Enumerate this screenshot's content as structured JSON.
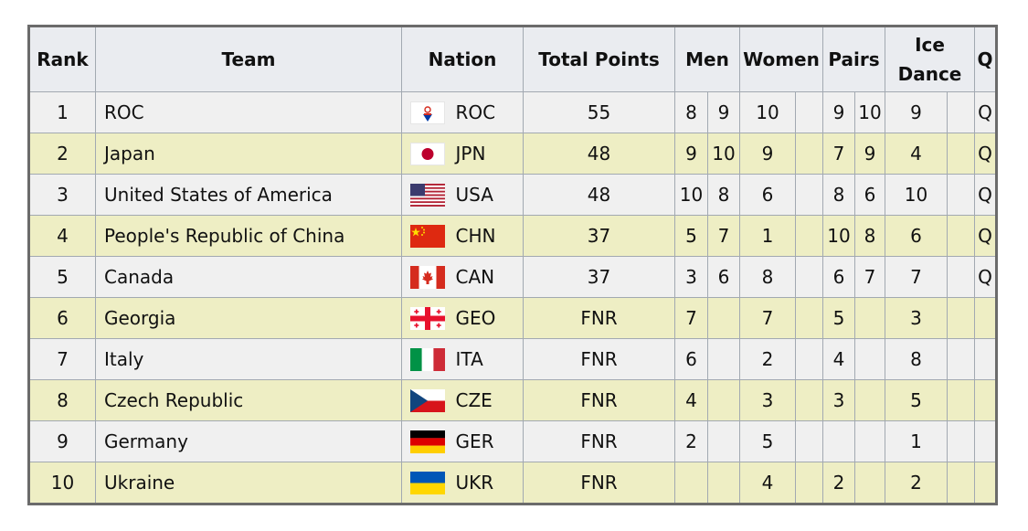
{
  "headers": {
    "rank": "Rank",
    "team": "Team",
    "nation": "Nation",
    "total": "Total Points",
    "men": "Men",
    "women": "Women",
    "pairs": "Pairs",
    "ice_dance_1": "Ice",
    "ice_dance_2": "Dance",
    "q": "Q"
  },
  "rows": [
    {
      "rank": "1",
      "team": "ROC",
      "flag": "roc-flag-icon",
      "code": "ROC",
      "total": "55",
      "men1": "8",
      "men2": "9",
      "women1": "10",
      "women2": "",
      "pairs1": "9",
      "pairs2": "10",
      "ice1": "9",
      "ice2": "",
      "q": "Q"
    },
    {
      "rank": "2",
      "team": "Japan",
      "flag": "japan-flag-icon",
      "code": "JPN",
      "total": "48",
      "men1": "9",
      "men2": "10",
      "women1": "9",
      "women2": "",
      "pairs1": "7",
      "pairs2": "9",
      "ice1": "4",
      "ice2": "",
      "q": "Q"
    },
    {
      "rank": "3",
      "team": "United States of America",
      "flag": "usa-flag-icon",
      "code": "USA",
      "total": "48",
      "men1": "10",
      "men2": "8",
      "women1": "6",
      "women2": "",
      "pairs1": "8",
      "pairs2": "6",
      "ice1": "10",
      "ice2": "",
      "q": "Q"
    },
    {
      "rank": "4",
      "team": "People's Republic of China",
      "flag": "china-flag-icon",
      "code": "CHN",
      "total": "37",
      "men1": "5",
      "men2": "7",
      "women1": "1",
      "women2": "",
      "pairs1": "10",
      "pairs2": "8",
      "ice1": "6",
      "ice2": "",
      "q": "Q"
    },
    {
      "rank": "5",
      "team": "Canada",
      "flag": "canada-flag-icon",
      "code": "CAN",
      "total": "37",
      "men1": "3",
      "men2": "6",
      "women1": "8",
      "women2": "",
      "pairs1": "6",
      "pairs2": "7",
      "ice1": "7",
      "ice2": "",
      "q": "Q"
    },
    {
      "rank": "6",
      "team": "Georgia",
      "flag": "georgia-flag-icon",
      "code": "GEO",
      "total": "FNR",
      "men1": "7",
      "men2": "",
      "women1": "7",
      "women2": "",
      "pairs1": "5",
      "pairs2": "",
      "ice1": "3",
      "ice2": "",
      "q": ""
    },
    {
      "rank": "7",
      "team": "Italy",
      "flag": "italy-flag-icon",
      "code": "ITA",
      "total": "FNR",
      "men1": "6",
      "men2": "",
      "women1": "2",
      "women2": "",
      "pairs1": "4",
      "pairs2": "",
      "ice1": "8",
      "ice2": "",
      "q": ""
    },
    {
      "rank": "8",
      "team": "Czech Republic",
      "flag": "czech-flag-icon",
      "code": "CZE",
      "total": "FNR",
      "men1": "4",
      "men2": "",
      "women1": "3",
      "women2": "",
      "pairs1": "3",
      "pairs2": "",
      "ice1": "5",
      "ice2": "",
      "q": ""
    },
    {
      "rank": "9",
      "team": "Germany",
      "flag": "germany-flag-icon",
      "code": "GER",
      "total": "FNR",
      "men1": "2",
      "men2": "",
      "women1": "5",
      "women2": "",
      "pairs1": "",
      "pairs2": "",
      "ice1": "1",
      "ice2": "",
      "q": ""
    },
    {
      "rank": "10",
      "team": "Ukraine",
      "flag": "ukraine-flag-icon",
      "code": "UKR",
      "total": "FNR",
      "men1": "",
      "men2": "",
      "women1": "4",
      "women2": "",
      "pairs1": "2",
      "pairs2": "",
      "ice1": "2",
      "ice2": "",
      "q": ""
    }
  ],
  "colors": {
    "row_odd": "#f0f0f0",
    "row_even": "#eeeec4",
    "header_bg": "#eaecf0",
    "border": "#a2a9b1",
    "outer_border": "#6b6b6b"
  }
}
